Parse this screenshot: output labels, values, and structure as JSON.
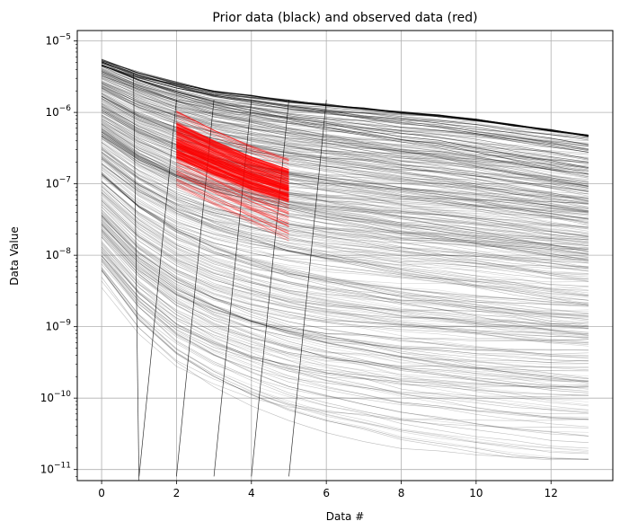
{
  "chart_data": {
    "type": "line",
    "title": "Prior data (black) and observed data (red)",
    "xlabel": "Data #",
    "ylabel": "Data Value",
    "xlim": [
      -0.65,
      13.65
    ],
    "ylim": [
      7e-12,
      1.4e-05
    ],
    "yscale": "log",
    "grid": true,
    "x_ticks": [
      0,
      2,
      4,
      6,
      8,
      10,
      12
    ],
    "y_tick_exponents": [
      -11,
      -10,
      -9,
      -8,
      -7,
      -6,
      -5
    ],
    "colors": {
      "prior": "#000000",
      "observed": "#ff0000",
      "grid": "#b0b0b0"
    },
    "prior_series": {
      "name": "Prior data",
      "x": [
        0,
        1,
        2,
        3,
        4,
        5,
        6,
        7,
        8,
        9,
        10,
        11,
        12,
        13
      ],
      "upper_envelope": [
        5.5e-06,
        3.6e-06,
        2.6e-06,
        2e-06,
        1.7e-06,
        1.45e-06,
        1.28e-06,
        1.13e-06,
        1e-06,
        9e-07,
        7.8e-07,
        6.6e-07,
        5.6e-07,
        4.7e-07
      ],
      "lower_envelope": [
        3e-09,
        6e-10,
        2e-10,
        1e-10,
        6e-11,
        4e-11,
        3e-11,
        2.5e-11,
        2e-11,
        1.8e-11,
        1.6e-11,
        1.5e-11,
        1.4e-11,
        1.4e-11
      ]
    },
    "observed_series": {
      "name": "Observed data",
      "x": [
        2,
        3,
        4,
        5
      ],
      "upper": [
        1.1e-06,
        6e-07,
        3.5e-07,
        2.3e-07
      ],
      "lower": [
        9e-08,
        5e-08,
        2.8e-08,
        1.6e-08
      ],
      "dense_upper": [
        7e-07,
        4e-07,
        2.4e-07,
        1.6e-07
      ],
      "dense_lower": [
        2.2e-07,
        1.3e-07,
        8e-08,
        5.5e-08
      ]
    }
  }
}
